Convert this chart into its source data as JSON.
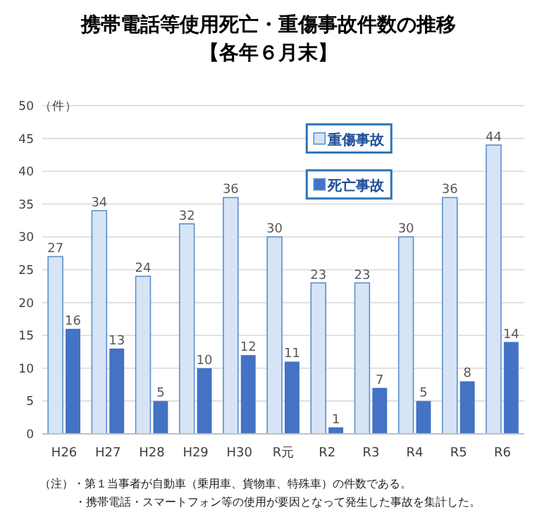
{
  "chart_data": {
    "type": "bar",
    "title": "携帯電話等使用死亡・重傷事故件数の推移",
    "subtitle": "【各年６月末】",
    "legend": "top right",
    "ylabel": "（件）",
    "categories": [
      "H26",
      "H27",
      "H28",
      "H29",
      "H30",
      "R元",
      "R2",
      "R3",
      "R4",
      "R5",
      "R6"
    ],
    "series": [
      {
        "name": "重傷事故",
        "color": "#d6e4f5",
        "values": [
          27,
          34,
          24,
          32,
          36,
          30,
          23,
          23,
          30,
          36,
          44
        ]
      },
      {
        "name": "死亡事故",
        "color": "#4472c4",
        "values": [
          16,
          13,
          5,
          10,
          12,
          11,
          1,
          7,
          5,
          8,
          14
        ]
      }
    ],
    "ylim": [
      0,
      50
    ],
    "yticks": [
      0,
      5,
      10,
      15,
      20,
      25,
      30,
      35,
      40,
      45,
      50
    ],
    "grid": "y",
    "data_labels": true,
    "annotations": [
      "（注）・第１当事者が自動車（乗用車、貨物車、特殊車）の件数である。",
      "・携帯電話・スマートフォン等の使用が要因となって発生した事故を集計した。"
    ]
  }
}
